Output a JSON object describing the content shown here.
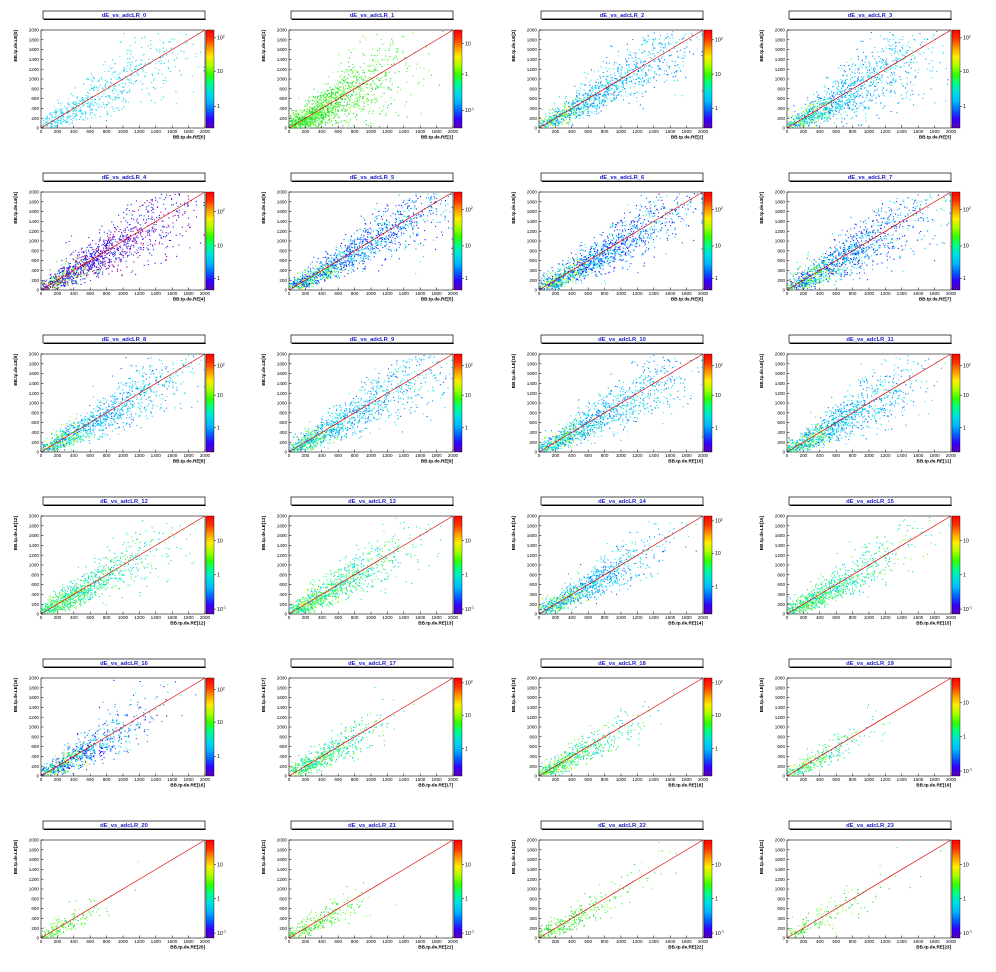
{
  "chart_data": {
    "type": "heatmap",
    "grid": "6 rows x 4 columns",
    "x_ticks": [
      "0",
      "200",
      "400",
      "600",
      "800",
      "1000",
      "1200",
      "1400",
      "1600",
      "1800",
      "2000"
    ],
    "y_ticks": [
      "0",
      "200",
      "400",
      "600",
      "800",
      "1000",
      "1200",
      "1400",
      "1600",
      "1800",
      "2000"
    ],
    "xlim": [
      0,
      2000
    ],
    "ylim": [
      0,
      2000
    ],
    "reference_line": {
      "from": [
        0,
        0
      ],
      "to": [
        2000,
        2000
      ],
      "color": "#dd0000"
    },
    "z_scale": "log",
    "palette": [
      "#5a00b4",
      "#3300ff",
      "#0066ff",
      "#00bbff",
      "#00e0e0",
      "#00ff88",
      "#33ff00",
      "#aaff00",
      "#ffee00",
      "#ff9900",
      "#ff3300",
      "#ff0000"
    ],
    "panels": [
      {
        "title": "dE_vs_adcLR_0",
        "xlabel": "BB.tp.de.RE[0]",
        "ylabel": "BB.tp.de.LE[0]",
        "z_ticks": [
          {
            "base": "10",
            "exp": "2",
            "pos": 0.08
          },
          {
            "base": "10",
            "exp": "",
            "pos": 0.42
          },
          {
            "base": "1",
            "exp": "",
            "pos": 0.78
          }
        ],
        "style": "cyan",
        "spread": 0.55,
        "reach": 0.95,
        "density": 750
      },
      {
        "title": "dE_vs_adcLR_1",
        "xlabel": "BB.tp.de.RE[1]",
        "ylabel": "BB.tp.de.LE[1]",
        "z_ticks": [
          {
            "base": "10",
            "exp": "",
            "pos": 0.14
          },
          {
            "base": "1",
            "exp": "",
            "pos": 0.45
          },
          {
            "base": "10",
            "exp": "-1",
            "pos": 0.82
          }
        ],
        "style": "green",
        "spread": 0.65,
        "reach": 0.55,
        "density": 1600
      },
      {
        "title": "dE_vs_adcLR_2",
        "xlabel": "BB.tp.de.RE[2]",
        "ylabel": "BB.tp.de.LE[2]",
        "z_ticks": [
          {
            "base": "10",
            "exp": "2",
            "pos": 0.1
          },
          {
            "base": "10",
            "exp": "",
            "pos": 0.45
          },
          {
            "base": "1",
            "exp": "",
            "pos": 0.8
          }
        ],
        "style": "cyanblue",
        "spread": 0.4,
        "reach": 0.9,
        "density": 1300
      },
      {
        "title": "dE_vs_adcLR_3",
        "xlabel": "BB.tp.de.RE[3]",
        "ylabel": "BB.tp.de.LE[3]",
        "z_ticks": [
          {
            "base": "10",
            "exp": "2",
            "pos": 0.08
          },
          {
            "base": "10",
            "exp": "",
            "pos": 0.42
          },
          {
            "base": "1",
            "exp": "",
            "pos": 0.78
          }
        ],
        "style": "cyanblue",
        "spread": 0.6,
        "reach": 0.85,
        "density": 1400
      },
      {
        "title": "dE_vs_adcLR_4",
        "xlabel": "BB.tp.de.RE[4]",
        "ylabel": "BB.tp.de.LE[4]",
        "z_ticks": [
          {
            "base": "10",
            "exp": "2",
            "pos": 0.2
          },
          {
            "base": "10",
            "exp": "",
            "pos": 0.55
          },
          {
            "base": "1",
            "exp": "",
            "pos": 0.88
          }
        ],
        "style": "purple",
        "spread": 0.45,
        "reach": 0.85,
        "density": 1500
      },
      {
        "title": "dE_vs_adcLR_5",
        "xlabel": "BB.tp.de.RE[5]",
        "ylabel": "BB.tp.de.LE[5]",
        "z_ticks": [
          {
            "base": "10",
            "exp": "2",
            "pos": 0.18
          },
          {
            "base": "10",
            "exp": "",
            "pos": 0.55
          },
          {
            "base": "1",
            "exp": "",
            "pos": 0.88
          }
        ],
        "style": "blue",
        "spread": 0.35,
        "reach": 0.95,
        "density": 1500
      },
      {
        "title": "dE_vs_adcLR_6",
        "xlabel": "BB.tp.de.RE[6]",
        "ylabel": "BB.tp.de.LE[6]",
        "z_ticks": [
          {
            "base": "10",
            "exp": "2",
            "pos": 0.18
          },
          {
            "base": "10",
            "exp": "",
            "pos": 0.55
          },
          {
            "base": "1",
            "exp": "",
            "pos": 0.88
          }
        ],
        "style": "blue",
        "spread": 0.4,
        "reach": 0.9,
        "density": 1500
      },
      {
        "title": "dE_vs_adcLR_7",
        "xlabel": "BB.tp.de.RE[7]",
        "ylabel": "BB.tp.de.LE[7]",
        "z_ticks": [
          {
            "base": "10",
            "exp": "2",
            "pos": 0.18
          },
          {
            "base": "10",
            "exp": "",
            "pos": 0.55
          },
          {
            "base": "1",
            "exp": "",
            "pos": 0.88
          }
        ],
        "style": "blue",
        "spread": 0.45,
        "reach": 0.85,
        "density": 1400
      },
      {
        "title": "dE_vs_adcLR_8",
        "xlabel": "BB.tp.de.RE[8]",
        "ylabel": "BB.tp.de.LE[8]",
        "z_ticks": [
          {
            "base": "10",
            "exp": "2",
            "pos": 0.12
          },
          {
            "base": "10",
            "exp": "",
            "pos": 0.42
          },
          {
            "base": "1",
            "exp": "",
            "pos": 0.75
          }
        ],
        "style": "cyanblue",
        "spread": 0.4,
        "reach": 0.85,
        "density": 1300
      },
      {
        "title": "dE_vs_adcLR_9",
        "xlabel": "BB.tp.de.RE[9]",
        "ylabel": "BB.tp.de.LE[9]",
        "z_ticks": [
          {
            "base": "10",
            "exp": "2",
            "pos": 0.12
          },
          {
            "base": "10",
            "exp": "",
            "pos": 0.42
          },
          {
            "base": "1",
            "exp": "",
            "pos": 0.75
          }
        ],
        "style": "cyanblue",
        "spread": 0.4,
        "reach": 0.85,
        "density": 1300
      },
      {
        "title": "dE_vs_adcLR_10",
        "xlabel": "BB.tp.de.RE[10]",
        "ylabel": "BB.tp.de.LE[10]",
        "z_ticks": [
          {
            "base": "10",
            "exp": "2",
            "pos": 0.12
          },
          {
            "base": "10",
            "exp": "",
            "pos": 0.42
          },
          {
            "base": "1",
            "exp": "",
            "pos": 0.75
          }
        ],
        "style": "cyanblue",
        "spread": 0.4,
        "reach": 0.85,
        "density": 1300
      },
      {
        "title": "dE_vs_adcLR_11",
        "xlabel": "BB.tp.de.RE[11]",
        "ylabel": "BB.tp.de.LE[11]",
        "z_ticks": [
          {
            "base": "10",
            "exp": "2",
            "pos": 0.12
          },
          {
            "base": "10",
            "exp": "",
            "pos": 0.42
          },
          {
            "base": "1",
            "exp": "",
            "pos": 0.75
          }
        ],
        "style": "cyanblue",
        "spread": 0.5,
        "reach": 0.7,
        "density": 1300
      },
      {
        "title": "dE_vs_adcLR_12",
        "xlabel": "BB.tp.de.RE[12]",
        "ylabel": "BB.tp.de.LE[12]",
        "z_ticks": [
          {
            "base": "10",
            "exp": "",
            "pos": 0.25
          },
          {
            "base": "1",
            "exp": "",
            "pos": 0.6
          },
          {
            "base": "10",
            "exp": "-1",
            "pos": 0.95
          }
        ],
        "style": "teal",
        "spread": 0.4,
        "reach": 0.6,
        "density": 1100
      },
      {
        "title": "dE_vs_adcLR_13",
        "xlabel": "BB.tp.de.RE[13]",
        "ylabel": "BB.tp.de.LE[13]",
        "z_ticks": [
          {
            "base": "10",
            "exp": "",
            "pos": 0.25
          },
          {
            "base": "1",
            "exp": "",
            "pos": 0.6
          },
          {
            "base": "10",
            "exp": "-1",
            "pos": 0.95
          }
        ],
        "style": "teal",
        "spread": 0.4,
        "reach": 0.6,
        "density": 1100
      },
      {
        "title": "dE_vs_adcLR_14",
        "xlabel": "BB.tp.de.RE[14]",
        "ylabel": "BB.tp.de.LE[14]",
        "z_ticks": [
          {
            "base": "10",
            "exp": "2",
            "pos": 0.05
          },
          {
            "base": "10",
            "exp": "",
            "pos": 0.38
          },
          {
            "base": "1",
            "exp": "",
            "pos": 0.72
          }
        ],
        "style": "cyanblue",
        "spread": 0.35,
        "reach": 0.65,
        "density": 1100
      },
      {
        "title": "dE_vs_adcLR_15",
        "xlabel": "BB.tp.de.RE[15]",
        "ylabel": "BB.tp.de.LE[15]",
        "z_ticks": [
          {
            "base": "10",
            "exp": "",
            "pos": 0.25
          },
          {
            "base": "1",
            "exp": "",
            "pos": 0.6
          },
          {
            "base": "10",
            "exp": "-1",
            "pos": 0.95
          }
        ],
        "style": "teal",
        "spread": 0.35,
        "reach": 0.6,
        "density": 1000
      },
      {
        "title": "dE_vs_adcLR_16",
        "xlabel": "BB.tp.de.RE[16]",
        "ylabel": "BB.tp.de.LE[16]",
        "z_ticks": [
          {
            "base": "10",
            "exp": "2",
            "pos": 0.12
          },
          {
            "base": "10",
            "exp": "",
            "pos": 0.45
          },
          {
            "base": "1",
            "exp": "",
            "pos": 0.8
          }
        ],
        "style": "blue",
        "spread": 0.4,
        "reach": 0.55,
        "density": 900
      },
      {
        "title": "dE_vs_adcLR_17",
        "xlabel": "BB.tp.de.RE[17]",
        "ylabel": "BB.tp.de.LE[17]",
        "z_ticks": [
          {
            "base": "10",
            "exp": "2",
            "pos": 0.05
          },
          {
            "base": "10",
            "exp": "",
            "pos": 0.38
          },
          {
            "base": "1",
            "exp": "",
            "pos": 0.72
          }
        ],
        "style": "teal",
        "spread": 0.3,
        "reach": 0.45,
        "density": 700
      },
      {
        "title": "dE_vs_adcLR_18",
        "xlabel": "BB.tp.de.RE[18]",
        "ylabel": "BB.tp.de.LE[18]",
        "z_ticks": [
          {
            "base": "10",
            "exp": "2",
            "pos": 0.05
          },
          {
            "base": "10",
            "exp": "",
            "pos": 0.38
          },
          {
            "base": "1",
            "exp": "",
            "pos": 0.72
          }
        ],
        "style": "teal",
        "spread": 0.3,
        "reach": 0.45,
        "density": 700
      },
      {
        "title": "dE_vs_adcLR_19",
        "xlabel": "BB.tp.de.RE[19]",
        "ylabel": "BB.tp.de.LE[19]",
        "z_ticks": [
          {
            "base": "10",
            "exp": "",
            "pos": 0.25
          },
          {
            "base": "1",
            "exp": "",
            "pos": 0.6
          },
          {
            "base": "10",
            "exp": "-1",
            "pos": 0.95
          }
        ],
        "style": "teal",
        "spread": 0.3,
        "reach": 0.4,
        "density": 350
      },
      {
        "title": "dE_vs_adcLR_20",
        "xlabel": "BB.tp.de.RE[20]",
        "ylabel": "BB.tp.de.LE[20]",
        "z_ticks": [
          {
            "base": "10",
            "exp": "",
            "pos": 0.25
          },
          {
            "base": "1",
            "exp": "",
            "pos": 0.6
          },
          {
            "base": "10",
            "exp": "-1",
            "pos": 0.95
          }
        ],
        "style": "green",
        "spread": 0.3,
        "reach": 0.3,
        "density": 220
      },
      {
        "title": "dE_vs_adcLR_21",
        "xlabel": "BB.tp.de.RE[21]",
        "ylabel": "BB.tp.de.LE[21]",
        "z_ticks": [
          {
            "base": "10",
            "exp": "",
            "pos": 0.25
          },
          {
            "base": "1",
            "exp": "",
            "pos": 0.6
          },
          {
            "base": "10",
            "exp": "-1",
            "pos": 0.95
          }
        ],
        "style": "green",
        "spread": 0.35,
        "reach": 0.35,
        "density": 300
      },
      {
        "title": "dE_vs_adcLR_22",
        "xlabel": "BB.tp.de.RE[22]",
        "ylabel": "BB.tp.de.LE[22]",
        "z_ticks": [
          {
            "base": "10",
            "exp": "",
            "pos": 0.25
          },
          {
            "base": "1",
            "exp": "",
            "pos": 0.6
          },
          {
            "base": "10",
            "exp": "-1",
            "pos": 0.95
          }
        ],
        "style": "green",
        "spread": 0.3,
        "reach": 0.5,
        "density": 350
      },
      {
        "title": "dE_vs_adcLR_23",
        "xlabel": "BB.tp.de.RE[23]",
        "ylabel": "BB.tp.de.LE[23]",
        "z_ticks": [
          {
            "base": "10",
            "exp": "",
            "pos": 0.25
          },
          {
            "base": "1",
            "exp": "",
            "pos": 0.6
          },
          {
            "base": "10",
            "exp": "-1",
            "pos": 0.95
          }
        ],
        "style": "green",
        "spread": 0.3,
        "reach": 0.45,
        "density": 200
      }
    ]
  }
}
